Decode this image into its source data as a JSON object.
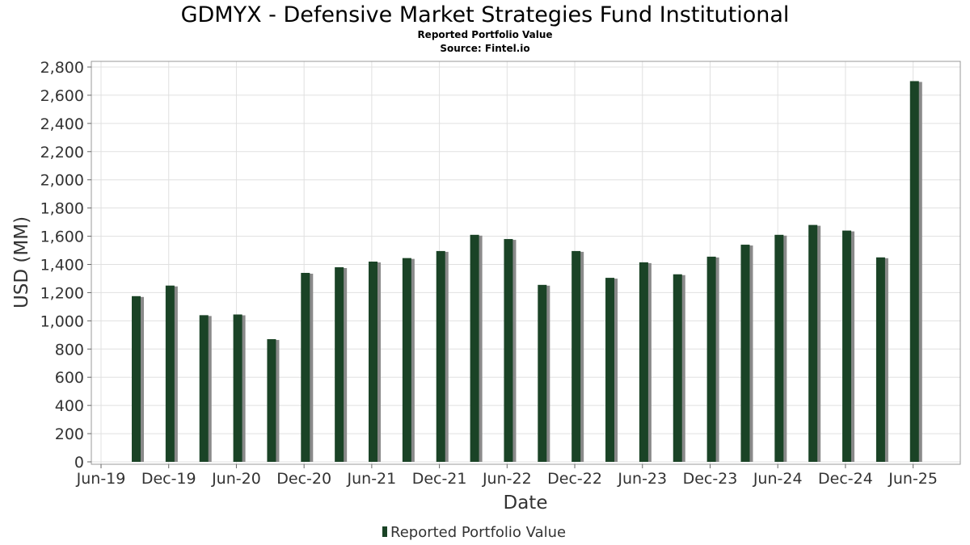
{
  "chart_data": {
    "type": "bar",
    "title": "GDMYX - Defensive Market Strategies Fund Institutional",
    "subtitle": "Reported Portfolio Value",
    "source": "Source: Fintel.io",
    "xlabel": "Date",
    "ylabel": "USD (MM)",
    "ylim": [
      0,
      2800
    ],
    "yticks": [
      "0",
      "200",
      "400",
      "600",
      "800",
      "1,000",
      "1,200",
      "1,400",
      "1,600",
      "1,800",
      "2,000",
      "2,200",
      "2,400",
      "2,600",
      "2,800"
    ],
    "xticks": [
      "Jun-19",
      "Dec-19",
      "Jun-20",
      "Dec-20",
      "Jun-21",
      "Dec-21",
      "Jun-22",
      "Dec-22",
      "Jun-23",
      "Dec-23",
      "Jun-24",
      "Dec-24",
      "Jun-25"
    ],
    "legend": "Reported Portfolio Value",
    "grid": true,
    "legend_position": "bottom-center",
    "series": [
      {
        "name": "Reported Portfolio Value",
        "color": "#1a4326",
        "values": [
          1175,
          1250,
          1040,
          1045,
          870,
          1340,
          1380,
          1420,
          1445,
          1495,
          1610,
          1580,
          1255,
          1495,
          1305,
          1415,
          1330,
          1455,
          1540,
          1610,
          1680,
          1640,
          1450,
          2700
        ]
      }
    ]
  },
  "colors": {
    "bar": "#1a4326",
    "bar_shadow": "#8a8a8a",
    "grid": "#e0e0e0",
    "frame": "#999999"
  }
}
